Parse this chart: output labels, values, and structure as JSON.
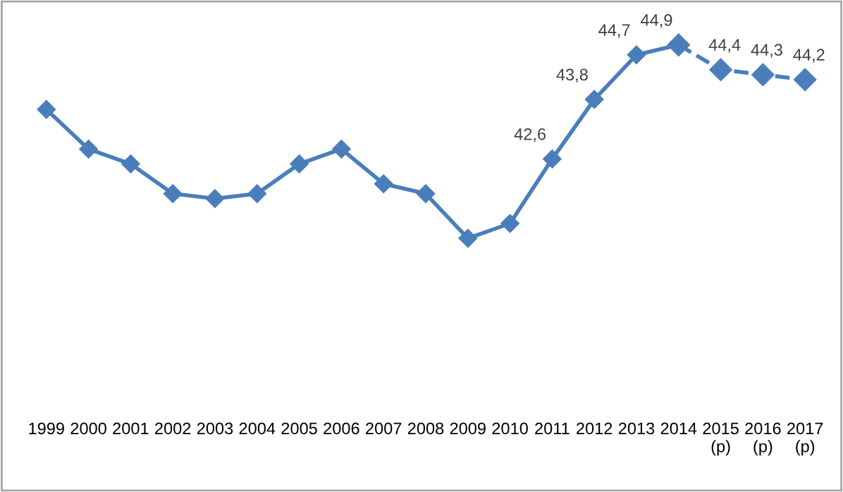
{
  "chart_data": {
    "type": "line",
    "categories": [
      "1999",
      "2000",
      "2001",
      "2002",
      "2003",
      "2004",
      "2005",
      "2006",
      "2007",
      "2008",
      "2009",
      "2010",
      "2011",
      "2012",
      "2013",
      "2014",
      "2015\n(p)",
      "2016\n(p)",
      "2017\n(p)"
    ],
    "series": [
      {
        "color": "#4a7ebb",
        "line_style": "solid",
        "values": [
          43.6,
          42.8,
          42.5,
          41.9,
          41.8,
          41.9,
          42.5,
          42.8,
          42.1,
          41.9,
          41.0,
          41.3,
          42.6,
          43.8,
          44.7,
          44.9,
          null,
          null,
          null
        ],
        "value_labels": [
          null,
          null,
          null,
          null,
          null,
          null,
          null,
          null,
          null,
          null,
          null,
          null,
          "42,6",
          "43,8",
          "44,7",
          "44,9",
          null,
          null,
          null
        ]
      },
      {
        "color": "#4a7ebb",
        "line_style": "dashed",
        "values": [
          null,
          null,
          null,
          null,
          null,
          null,
          null,
          null,
          null,
          null,
          null,
          null,
          null,
          null,
          null,
          44.9,
          44.4,
          44.3,
          44.2
        ],
        "value_labels": [
          null,
          null,
          null,
          null,
          null,
          null,
          null,
          null,
          null,
          null,
          null,
          null,
          null,
          null,
          null,
          null,
          "44,4",
          "44,3",
          "44,2"
        ]
      }
    ],
    "marker": "diamond",
    "grid": false,
    "legend": false,
    "tick_labels": "x"
  }
}
